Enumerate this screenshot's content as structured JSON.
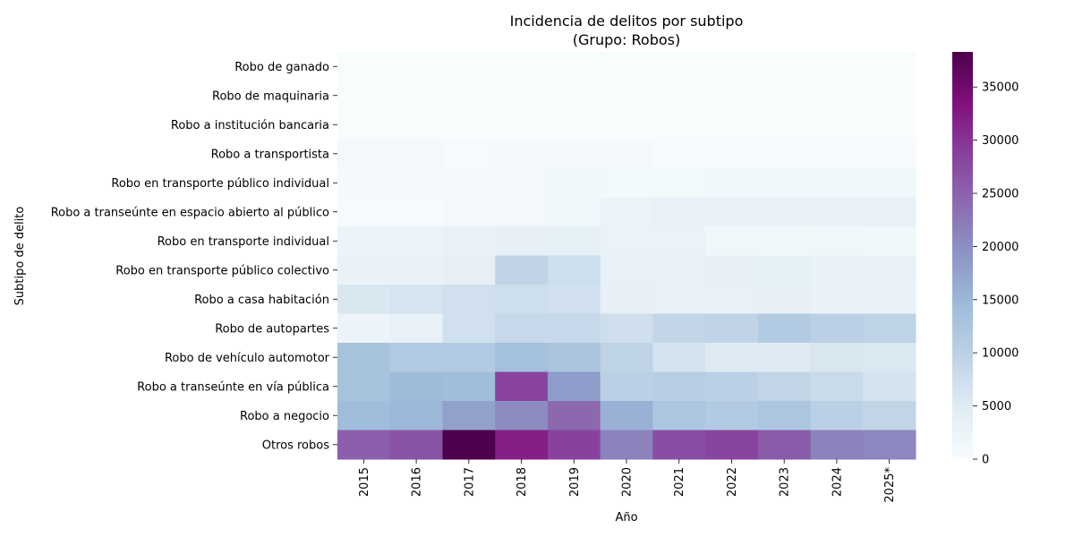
{
  "chart_data": {
    "type": "heatmap",
    "title_line1": "Incidencia de delitos por subtipo",
    "title_line2": "(Grupo: Robos)",
    "xlabel": "Año",
    "ylabel": "Subtipo de delito",
    "x": [
      "2015",
      "2016",
      "2017",
      "2018",
      "2019",
      "2020",
      "2021",
      "2022",
      "2023",
      "2024",
      "2025*"
    ],
    "y": [
      "Robo de ganado",
      "Robo de maquinaria",
      "Robo a institución bancaria",
      "Robo a transportista",
      "Robo en transporte público individual",
      "Robo a transeúnte en espacio abierto al público",
      "Robo en transporte individual",
      "Robo en transporte público colectivo",
      "Robo a casa habitación",
      "Robo de autopartes",
      "Robo de vehículo automotor",
      "Robo a transeúnte en vía pública",
      "Robo a negocio",
      "Otros robos"
    ],
    "values": [
      [
        50,
        50,
        50,
        50,
        50,
        50,
        50,
        50,
        50,
        50,
        50
      ],
      [
        60,
        60,
        60,
        60,
        60,
        60,
        60,
        60,
        60,
        60,
        60
      ],
      [
        80,
        80,
        80,
        80,
        80,
        80,
        80,
        80,
        80,
        80,
        80
      ],
      [
        900,
        900,
        500,
        700,
        700,
        700,
        200,
        200,
        200,
        200,
        200
      ],
      [
        700,
        700,
        800,
        800,
        1200,
        1000,
        1000,
        1300,
        1300,
        1300,
        1300
      ],
      [
        400,
        400,
        900,
        900,
        1200,
        2800,
        3400,
        3000,
        3000,
        3000,
        3300
      ],
      [
        2400,
        2400,
        3000,
        3600,
        3900,
        2600,
        2600,
        1500,
        1300,
        1400,
        1300
      ],
      [
        3000,
        3000,
        3600,
        9300,
        7500,
        3300,
        3300,
        3600,
        3800,
        2900,
        3400
      ],
      [
        5800,
        6300,
        7000,
        7500,
        7000,
        3600,
        3300,
        3400,
        3500,
        3000,
        3000
      ],
      [
        2300,
        3300,
        7000,
        8600,
        8600,
        7400,
        9000,
        9300,
        11300,
        10100,
        9600
      ],
      [
        13000,
        11300,
        11300,
        13600,
        12600,
        9600,
        6600,
        5000,
        5100,
        6000,
        5600
      ],
      [
        13000,
        14300,
        14000,
        28500,
        18300,
        10100,
        10600,
        10100,
        9100,
        8100,
        6600
      ],
      [
        14000,
        15000,
        17800,
        20300,
        24300,
        15800,
        12300,
        11300,
        12300,
        10100,
        9100
      ],
      [
        25300,
        26600,
        38300,
        32000,
        28600,
        21300,
        27300,
        28300,
        25800,
        21300,
        20800
      ]
    ],
    "colorbar": {
      "min": 0,
      "max": 38300,
      "ticks": [
        "0",
        "5000",
        "10000",
        "15000",
        "20000",
        "25000",
        "30000",
        "35000"
      ],
      "colormap": "BuPu",
      "stops": [
        "#f7fcfd",
        "#e0ecf4",
        "#bfd3e6",
        "#9ebcda",
        "#8c96c6",
        "#8c6bb1",
        "#88419d",
        "#810f7c",
        "#4d004b"
      ]
    }
  }
}
